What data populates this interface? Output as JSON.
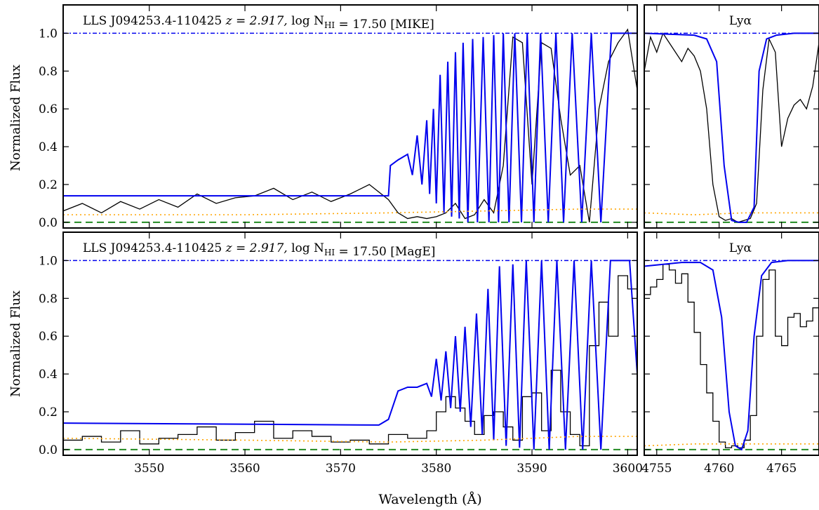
{
  "figure": {
    "xlabel": "Wavelength (Å)",
    "ylabel": "Normalized Flux"
  },
  "colors": {
    "data": "#000000",
    "model": "#0000ee",
    "continuum": "#0000ee",
    "zero": "#228b22",
    "error": "#ffa500"
  },
  "chart_data": [
    {
      "type": "line",
      "panel": "top-left",
      "annotation": {
        "prefix": "LLS J094253.4-110425",
        "z_part": "z = 2.917,",
        "logN_part": "log N",
        "logN_sub": "HI",
        "logN_value": " = 17.50",
        "instrument": "[MIKE]"
      },
      "xlim": [
        3541,
        3601
      ],
      "ylim": [
        -0.03,
        1.15
      ],
      "xticks": [
        "3550",
        "3560",
        "3570",
        "3580",
        "3590",
        "3600"
      ],
      "yticks": [
        "0.0",
        "0.2",
        "0.4",
        "0.6",
        "0.8",
        "1.0"
      ],
      "continuum": 1.0,
      "series": [
        {
          "kind": "flux",
          "step": false,
          "x": [
            3541,
            3543,
            3545,
            3547,
            3549,
            3551,
            3553,
            3555,
            3557,
            3559,
            3561,
            3563,
            3565,
            3567,
            3569,
            3571,
            3573,
            3575,
            3576,
            3577,
            3578,
            3579,
            3580,
            3581,
            3582,
            3583,
            3584,
            3585,
            3586,
            3587,
            3588,
            3589,
            3590,
            3591,
            3592,
            3593,
            3594,
            3595,
            3596,
            3597,
            3598,
            3599,
            3600,
            3601
          ],
          "y": [
            0.06,
            0.1,
            0.05,
            0.11,
            0.07,
            0.12,
            0.08,
            0.15,
            0.1,
            0.13,
            0.14,
            0.18,
            0.12,
            0.16,
            0.11,
            0.15,
            0.2,
            0.12,
            0.05,
            0.02,
            0.03,
            0.02,
            0.03,
            0.05,
            0.1,
            0.02,
            0.04,
            0.12,
            0.05,
            0.3,
            0.98,
            0.95,
            0.2,
            0.95,
            0.92,
            0.55,
            0.25,
            0.3,
            0.0,
            0.6,
            0.85,
            0.95,
            1.02,
            0.7
          ]
        },
        {
          "kind": "model",
          "step": false,
          "x": [
            3541,
            3575,
            3575.2,
            3576,
            3577,
            3577.5,
            3578,
            3578.5,
            3579,
            3579.3,
            3579.7,
            3580,
            3580.4,
            3580.8,
            3581.2,
            3581.6,
            3582,
            3582.4,
            3582.8,
            3583.3,
            3583.8,
            3584.3,
            3584.9,
            3585.5,
            3586,
            3586.5,
            3587,
            3587.6,
            3588.2,
            3588.9,
            3589.5,
            3590.2,
            3590.9,
            3591.7,
            3592.5,
            3593.3,
            3594.2,
            3595.2,
            3596.2,
            3597.2,
            3598.3,
            3601
          ],
          "y": [
            0.14,
            0.14,
            0.3,
            0.33,
            0.36,
            0.25,
            0.46,
            0.2,
            0.54,
            0.15,
            0.6,
            0.1,
            0.78,
            0.05,
            0.85,
            0.03,
            0.9,
            0.02,
            0.95,
            0.0,
            0.97,
            0.0,
            0.98,
            0.0,
            0.99,
            0.0,
            1.0,
            0.0,
            1.0,
            0.0,
            1.0,
            0.0,
            1.0,
            0.0,
            1.0,
            0.0,
            1.0,
            0.0,
            1.0,
            0.0,
            1.0,
            1.0
          ]
        },
        {
          "kind": "error",
          "x": [
            3541,
            3560,
            3575,
            3585,
            3595,
            3601
          ],
          "y": [
            0.04,
            0.04,
            0.05,
            0.06,
            0.07,
            0.07
          ]
        }
      ]
    },
    {
      "type": "line",
      "panel": "top-right",
      "annotation": {
        "label": "Lyα"
      },
      "xlim": [
        4754,
        4768
      ],
      "ylim": [
        -0.03,
        1.15
      ],
      "xticks": [
        "4755",
        "4760",
        "4765"
      ],
      "continuum": 1.0,
      "series": [
        {
          "kind": "flux",
          "step": false,
          "x": [
            4754,
            4754.5,
            4755,
            4755.5,
            4756,
            4756.5,
            4757,
            4757.5,
            4758,
            4758.5,
            4759,
            4759.5,
            4760,
            4760.5,
            4761,
            4761.5,
            4762,
            4762.5,
            4763,
            4763.5,
            4764,
            4764.5,
            4765,
            4765.5,
            4766,
            4766.5,
            4767,
            4767.5,
            4768
          ],
          "y": [
            0.8,
            0.98,
            0.9,
            1.0,
            0.95,
            0.9,
            0.85,
            0.92,
            0.88,
            0.8,
            0.6,
            0.2,
            0.03,
            0.01,
            0.02,
            0.0,
            0.01,
            0.02,
            0.1,
            0.7,
            0.97,
            0.9,
            0.4,
            0.55,
            0.62,
            0.65,
            0.6,
            0.72,
            0.95
          ]
        },
        {
          "kind": "model",
          "step": false,
          "x": [
            4754,
            4758,
            4759,
            4759.8,
            4760.4,
            4761,
            4761.6,
            4762.2,
            4762.8,
            4763.2,
            4763.8,
            4764.6,
            4766,
            4768
          ],
          "y": [
            1.0,
            0.99,
            0.97,
            0.85,
            0.3,
            0.01,
            0.0,
            0.0,
            0.08,
            0.8,
            0.97,
            0.99,
            1.0,
            1.0
          ]
        },
        {
          "kind": "error",
          "x": [
            4754,
            4758,
            4762,
            4766,
            4768
          ],
          "y": [
            0.05,
            0.04,
            0.05,
            0.05,
            0.05
          ]
        }
      ]
    },
    {
      "type": "line",
      "panel": "bottom-left",
      "annotation": {
        "prefix": "LLS J094253.4-110425",
        "z_part": "z = 2.917,",
        "logN_part": "log N",
        "logN_sub": "HI",
        "logN_value": " = 17.50",
        "instrument": "[MagE]"
      },
      "xlim": [
        3541,
        3601
      ],
      "ylim": [
        -0.03,
        1.15
      ],
      "xticks": [
        "3550",
        "3560",
        "3570",
        "3580",
        "3590",
        "3600"
      ],
      "yticks": [
        "0.0",
        "0.2",
        "0.4",
        "0.6",
        "0.8",
        "1.0"
      ],
      "continuum": 1.0,
      "series": [
        {
          "kind": "flux",
          "step": true,
          "x": [
            3541,
            3543,
            3545,
            3547,
            3549,
            3551,
            3553,
            3555,
            3557,
            3559,
            3561,
            3563,
            3565,
            3567,
            3569,
            3571,
            3573,
            3575,
            3577,
            3579,
            3580,
            3581,
            3582,
            3583,
            3584,
            3585,
            3586,
            3587,
            3588,
            3589,
            3590,
            3591,
            3592,
            3593,
            3594,
            3595,
            3596,
            3597,
            3598,
            3599,
            3600,
            3601
          ],
          "y": [
            0.05,
            0.07,
            0.04,
            0.1,
            0.03,
            0.06,
            0.08,
            0.12,
            0.05,
            0.09,
            0.15,
            0.06,
            0.1,
            0.07,
            0.04,
            0.05,
            0.03,
            0.08,
            0.06,
            0.1,
            0.2,
            0.28,
            0.22,
            0.15,
            0.08,
            0.18,
            0.2,
            0.12,
            0.05,
            0.28,
            0.3,
            0.1,
            0.42,
            0.2,
            0.08,
            0.02,
            0.55,
            0.78,
            0.6,
            0.92,
            0.85,
            0.45
          ]
        },
        {
          "kind": "model",
          "step": false,
          "x": [
            3541,
            3574,
            3575,
            3576,
            3577,
            3578,
            3579,
            3579.5,
            3580,
            3580.5,
            3581,
            3581.5,
            3582,
            3582.5,
            3583,
            3583.6,
            3584.2,
            3584.8,
            3585.4,
            3586,
            3586.6,
            3587.3,
            3588,
            3588.7,
            3589.4,
            3590.2,
            3591,
            3591.8,
            3592.6,
            3593.5,
            3594.4,
            3595.3,
            3596.2,
            3597.2,
            3598.2,
            3599.2,
            3600.2,
            3601
          ],
          "y": [
            0.14,
            0.13,
            0.16,
            0.31,
            0.33,
            0.33,
            0.35,
            0.28,
            0.48,
            0.26,
            0.52,
            0.22,
            0.6,
            0.2,
            0.65,
            0.12,
            0.72,
            0.08,
            0.85,
            0.05,
            0.97,
            0.02,
            0.98,
            0.01,
            1.0,
            0.0,
            1.0,
            0.0,
            1.0,
            0.0,
            1.0,
            0.0,
            1.0,
            0.0,
            1.0,
            1.0,
            1.0,
            0.4
          ]
        },
        {
          "kind": "error",
          "x": [
            3541,
            3560,
            3575,
            3585,
            3595,
            3601
          ],
          "y": [
            0.06,
            0.05,
            0.04,
            0.05,
            0.07,
            0.07
          ]
        }
      ]
    },
    {
      "type": "line",
      "panel": "bottom-right",
      "annotation": {
        "label": "Lyα"
      },
      "xlim": [
        4754,
        4768
      ],
      "ylim": [
        -0.03,
        1.15
      ],
      "xticks": [
        "4755",
        "4760",
        "4765"
      ],
      "continuum": 1.0,
      "series": [
        {
          "kind": "flux",
          "step": true,
          "x": [
            4754,
            4754.5,
            4755,
            4755.5,
            4756,
            4756.5,
            4757,
            4757.5,
            4758,
            4758.5,
            4759,
            4759.5,
            4760,
            4760.5,
            4761,
            4761.5,
            4762,
            4762.5,
            4763,
            4763.5,
            4764,
            4764.5,
            4765,
            4765.5,
            4766,
            4766.5,
            4767,
            4767.5,
            4768
          ],
          "y": [
            0.82,
            0.86,
            0.9,
            0.98,
            0.95,
            0.88,
            0.93,
            0.78,
            0.62,
            0.45,
            0.3,
            0.15,
            0.04,
            0.01,
            0.02,
            0.01,
            0.05,
            0.18,
            0.6,
            0.9,
            0.95,
            0.6,
            0.55,
            0.7,
            0.72,
            0.65,
            0.68,
            0.75,
            0.9
          ]
        },
        {
          "kind": "model",
          "step": false,
          "x": [
            4754,
            4757,
            4758.5,
            4759.5,
            4760.2,
            4760.8,
            4761.3,
            4761.8,
            4762.3,
            4762.8,
            4763.4,
            4764.2,
            4765.5,
            4768
          ],
          "y": [
            0.97,
            0.99,
            0.99,
            0.95,
            0.7,
            0.2,
            0.02,
            0.0,
            0.1,
            0.6,
            0.92,
            0.99,
            1.0,
            1.0
          ]
        },
        {
          "kind": "error",
          "x": [
            4754,
            4758,
            4762,
            4766,
            4768
          ],
          "y": [
            0.02,
            0.03,
            0.03,
            0.03,
            0.03
          ]
        }
      ]
    }
  ]
}
